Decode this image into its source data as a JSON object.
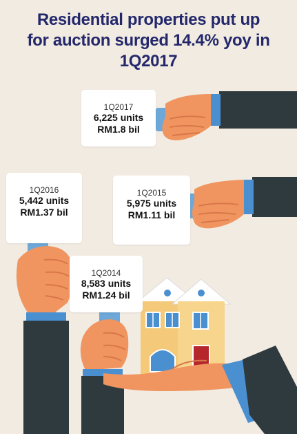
{
  "title": {
    "line1": "Residential properties put up",
    "line2": "for auction surged 14.4% yoy in",
    "line3": "1Q2017"
  },
  "cards": [
    {
      "quarter": "1Q2017",
      "units": "6,225 units",
      "value": "RM1.8 bil"
    },
    {
      "quarter": "1Q2016",
      "units": "5,442 units",
      "value": "RM1.37 bil"
    },
    {
      "quarter": "1Q2015",
      "units": "5,975 units",
      "value": "RM1.11 bil"
    },
    {
      "quarter": "1Q2014",
      "units": "8,583 units",
      "value": "RM1.24 bil"
    }
  ],
  "colors": {
    "background": "#f1ebe2",
    "title": "#24286b",
    "sleeve": "#2f3a3e",
    "cuff": "#4a8fd0",
    "skin": "#f0955f",
    "paddle_handle": "#6ea8d8",
    "house_wall": "#f4c97a",
    "house_roof": "#ffffff",
    "house_door": "#b5272d"
  },
  "icons": [
    "hand-icon",
    "house-icon",
    "sleeve-icon"
  ]
}
